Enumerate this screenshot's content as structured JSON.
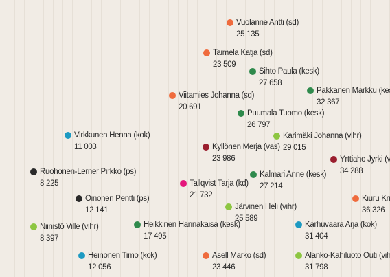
{
  "people": [
    {
      "name": "Vuolanne Antti (sd)",
      "votes": "25 135",
      "color": "#ef6b3d"
    },
    {
      "name": "Taimela Katja (sd)",
      "votes": "23 509",
      "color": "#ef6b3d"
    },
    {
      "name": "Sihto Paula (kesk)",
      "votes": "27 658",
      "color": "#2f8a4c"
    },
    {
      "name": "Pakkanen Markku (kesk)",
      "votes": "32 367",
      "color": "#2f8a4c"
    },
    {
      "name": "Viitamies Johanna (sd)",
      "votes": "20 691",
      "color": "#ef6b3d"
    },
    {
      "name": "Puumala Tuomo (kesk)",
      "votes": "26 797",
      "color": "#2f8a4c"
    },
    {
      "name": "Virkkunen Henna (kok)",
      "votes": "11 003",
      "color": "#1d9ac2"
    },
    {
      "name": "Karimäki Johanna (vihr)",
      "votes": "29 015",
      "color": "#8dc642"
    },
    {
      "name": "Kyllönen Merja (vas)",
      "votes": "23 986",
      "color": "#9a1e2e"
    },
    {
      "name": "Yrttiaho Jyrki (vas)",
      "votes": "34 288",
      "color": "#9a1e2e"
    },
    {
      "name": "Ruohonen-Lerner Pirkko (ps)",
      "votes": "8 225",
      "color": "#2a2a2a"
    },
    {
      "name": "Kalmari Anne (kesk)",
      "votes": "27 214",
      "color": "#2f8a4c"
    },
    {
      "name": "Tallqvist Tarja (kd)",
      "votes": "21 732",
      "color": "#e4177c"
    },
    {
      "name": "Kiuru Kri",
      "votes": "36 326",
      "color": "#ef6b3d"
    },
    {
      "name": "Oinonen Pentti (ps)",
      "votes": "12 141",
      "color": "#2a2a2a"
    },
    {
      "name": "Järvinen Heli (vihr)",
      "votes": "25 589",
      "color": "#8dc642"
    },
    {
      "name": "Niinistö Ville (vihr)",
      "votes": "8 397",
      "color": "#8dc642"
    },
    {
      "name": "Heikkinen Hannakaisa (kesk)",
      "votes": "17 495",
      "color": "#2f8a4c"
    },
    {
      "name": "Karhuvaara Arja (kok)",
      "votes": "31 404",
      "color": "#1d9ac2"
    },
    {
      "name": "Heinonen Timo (kok)",
      "votes": "12 056",
      "color": "#1d9ac2"
    },
    {
      "name": "Asell Marko (sd)",
      "votes": "23 446",
      "color": "#ef6b3d"
    },
    {
      "name": "Alanko-Kahiluoto Outi (vihr)",
      "votes": "31 798",
      "color": "#8dc642"
    }
  ]
}
